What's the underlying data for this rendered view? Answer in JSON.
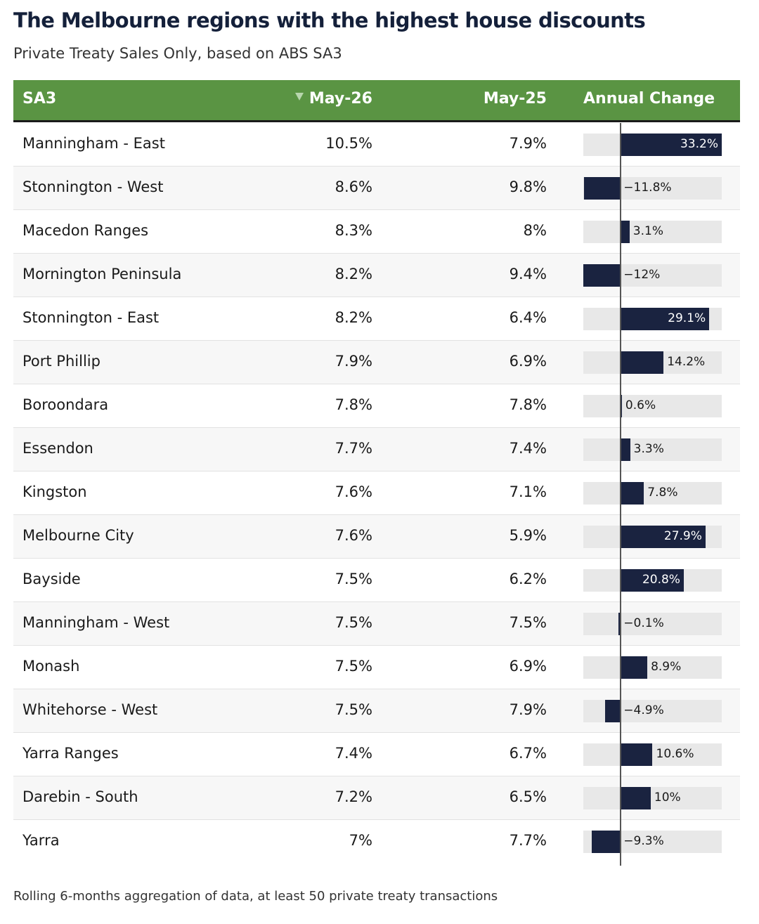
{
  "title": "The Melbourne regions with the highest house discounts",
  "subtitle": "Private Treaty Sales Only, based on ABS SA3",
  "footnote": "Rolling 6-months aggregation of data, at least 50 private treaty transactions",
  "colors": {
    "header": "#5a9443",
    "bar": "#1a2340",
    "bar_track": "#e8e8e8"
  },
  "columns": {
    "sa3": "SA3",
    "may26": "May-26",
    "may25": "May-25",
    "change": "Annual Change"
  },
  "sort_icon": "sort-descending-icon",
  "chart_data": {
    "type": "table",
    "columns": [
      "SA3",
      "May-26",
      "May-25",
      "Annual Change"
    ],
    "sorted_by": "May-26",
    "sort_order": "descending",
    "change_bar_range": [
      -12,
      33.2
    ],
    "rows": [
      {
        "name": "Manningham - East",
        "may26": "10.5%",
        "may25": "7.9%",
        "change": 33.2,
        "change_label": "33.2%"
      },
      {
        "name": "Stonnington - West",
        "may26": "8.6%",
        "may25": "9.8%",
        "change": -11.8,
        "change_label": "−11.8%"
      },
      {
        "name": "Macedon Ranges",
        "may26": "8.3%",
        "may25": "8%",
        "change": 3.1,
        "change_label": "3.1%"
      },
      {
        "name": "Mornington Peninsula",
        "may26": "8.2%",
        "may25": "9.4%",
        "change": -12,
        "change_label": "−12%"
      },
      {
        "name": "Stonnington - East",
        "may26": "8.2%",
        "may25": "6.4%",
        "change": 29.1,
        "change_label": "29.1%"
      },
      {
        "name": "Port Phillip",
        "may26": "7.9%",
        "may25": "6.9%",
        "change": 14.2,
        "change_label": "14.2%"
      },
      {
        "name": "Boroondara",
        "may26": "7.8%",
        "may25": "7.8%",
        "change": 0.6,
        "change_label": "0.6%"
      },
      {
        "name": "Essendon",
        "may26": "7.7%",
        "may25": "7.4%",
        "change": 3.3,
        "change_label": "3.3%"
      },
      {
        "name": "Kingston",
        "may26": "7.6%",
        "may25": "7.1%",
        "change": 7.8,
        "change_label": "7.8%"
      },
      {
        "name": "Melbourne City",
        "may26": "7.6%",
        "may25": "5.9%",
        "change": 27.9,
        "change_label": "27.9%"
      },
      {
        "name": "Bayside",
        "may26": "7.5%",
        "may25": "6.2%",
        "change": 20.8,
        "change_label": "20.8%"
      },
      {
        "name": "Manningham - West",
        "may26": "7.5%",
        "may25": "7.5%",
        "change": -0.1,
        "change_label": "−0.1%"
      },
      {
        "name": "Monash",
        "may26": "7.5%",
        "may25": "6.9%",
        "change": 8.9,
        "change_label": "8.9%"
      },
      {
        "name": "Whitehorse - West",
        "may26": "7.5%",
        "may25": "7.9%",
        "change": -4.9,
        "change_label": "−4.9%"
      },
      {
        "name": "Yarra Ranges",
        "may26": "7.4%",
        "may25": "6.7%",
        "change": 10.6,
        "change_label": "10.6%"
      },
      {
        "name": "Darebin - South",
        "may26": "7.2%",
        "may25": "6.5%",
        "change": 10,
        "change_label": "10%"
      },
      {
        "name": "Yarra",
        "may26": "7%",
        "may25": "7.7%",
        "change": -9.3,
        "change_label": "−9.3%"
      }
    ]
  }
}
